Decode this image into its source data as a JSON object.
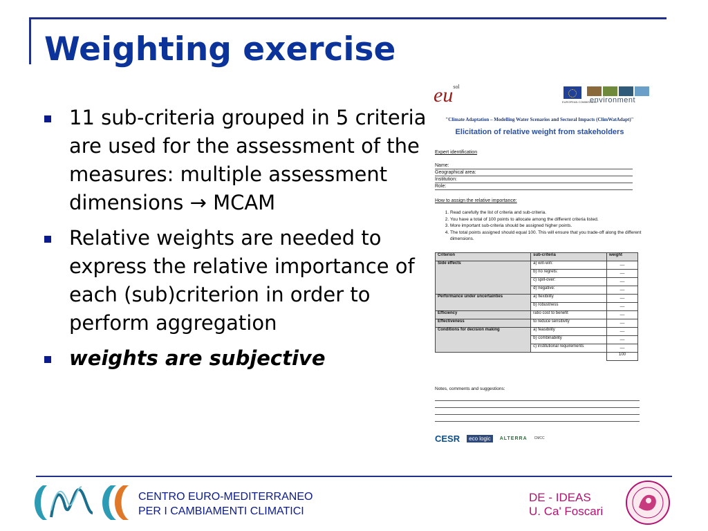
{
  "title": "Weighting exercise",
  "bullets": [
    {
      "text": "11 sub-criteria grouped in 5 criteria are used for the assessment of the measures: multiple assessment dimensions → MCAM",
      "style": "normal"
    },
    {
      "text": "Relative weights are needed to express the relative importance of each (sub)criterion in order to perform aggregation",
      "style": "normal"
    },
    {
      "text": "weights are subjective",
      "style": "bold-italic"
    }
  ],
  "document": {
    "eu_logo": "eu",
    "eu_logo_sup": "sol",
    "commission_text": "EUROPEAN COMMISSION",
    "environment_label": "environment",
    "project_title": "\"Climate Adaptation – Modelling Water Scenarios and Sectoral Impacts (ClimWatAdapt)\"",
    "form_title": "Elicitation of relative weight from stakeholders",
    "expert_heading": "Expert identification",
    "fields": [
      "Name:",
      "Geographical area:",
      "Institution:",
      "Role:"
    ],
    "how_heading": "How to assign the relative importance:",
    "instructions": [
      "Read carefully the list of criteria and sub-criteria.",
      "You have a total of 100 points to allocate among the different criteria listed.",
      "More important sub-criteria should be assigned higher points.",
      "The total points assigned should equal 100. This will ensure that you trade-off along the different dimensions."
    ],
    "table_headers": [
      "Criterion",
      "sub-criteria",
      "weight"
    ],
    "criteria": [
      {
        "name": "Side effects",
        "subs": [
          "a)  win-win:",
          "b)  no regrets:",
          "c)  spill-over:",
          "d)  negative:"
        ]
      },
      {
        "name": "Performance under uncertainties",
        "subs": [
          "a)  flexibility",
          "b)  robustness"
        ]
      },
      {
        "name": "Efficiency",
        "subs": [
          "ratio cost to benefit"
        ]
      },
      {
        "name": "Effectiveness",
        "subs": [
          "to reduce sensitivity"
        ]
      },
      {
        "name": "Conditions for decision making",
        "subs": [
          "a)  feasibility",
          "b)  combinability",
          "c)  institutional requirements"
        ]
      }
    ],
    "weight_blank": "__",
    "total": "100",
    "notes_label": "Notes, comments and suggestions:",
    "partner_logos": [
      "CESR",
      "eco logic",
      "ALTERRA",
      "CMCC"
    ]
  },
  "footer": {
    "org_line1": "CENTRO EURO-MEDITERRANEO",
    "org_line2": "PER I CAMBIAMENTI CLIMATICI",
    "right_line1": "DE - IDEAS",
    "right_line2": "U. Ca' Foscari"
  },
  "colors": {
    "title": "#0b3399",
    "frame": "#1f2f8a",
    "footer_right": "#b01470",
    "bullet": "#0b1a8c"
  }
}
